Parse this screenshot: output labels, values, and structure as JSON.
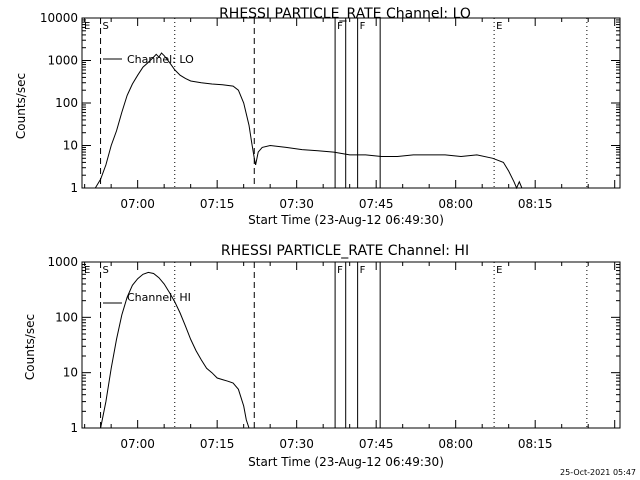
{
  "chart_data": [
    {
      "type": "line",
      "title": "RHESSI PARTICLE_RATE Channel: LO",
      "xlabel": "Start Time (23-Aug-12 06:49:30)",
      "ylabel": "Counts/sec",
      "yscale": "log",
      "ylim": [
        1,
        10000
      ],
      "y_ticks": [
        "1",
        "10",
        "100",
        "1000",
        "10000"
      ],
      "x_ticks": [
        "07:00",
        "07:15",
        "07:30",
        "07:45",
        "08:00",
        "08:15"
      ],
      "x_range": [
        "06:49:30",
        "08:31:00"
      ],
      "grid": false,
      "legend": {
        "position": "top-left",
        "entries": [
          "Channel: LO"
        ]
      },
      "markers": [
        {
          "label": "E",
          "time": "06:49:30",
          "style": "solid"
        },
        {
          "label": "S",
          "time": "06:53:00",
          "style": "dashed"
        },
        {
          "label": "",
          "time": "07:07:00",
          "style": "dotted"
        },
        {
          "label": "",
          "time": "07:22:00",
          "style": "dashed"
        },
        {
          "label": "F",
          "time": "07:37:15",
          "style": "solid"
        },
        {
          "label": "",
          "time": "07:39:15",
          "style": "solid"
        },
        {
          "label": "F",
          "time": "07:41:30",
          "style": "solid"
        },
        {
          "label": "",
          "time": "07:45:45",
          "style": "solid"
        },
        {
          "label": "E",
          "time": "08:07:15",
          "style": "dotted"
        },
        {
          "label": "",
          "time": "08:24:45",
          "style": "dotted"
        }
      ],
      "series": [
        {
          "points": [
            [
              "06:52:00",
              1
            ],
            [
              "06:53:00",
              1.6
            ],
            [
              "06:54:00",
              3.5
            ],
            [
              "06:55:00",
              10
            ],
            [
              "06:56:00",
              22
            ],
            [
              "06:57:00",
              60
            ],
            [
              "06:58:00",
              150
            ],
            [
              "06:59:00",
              280
            ],
            [
              "07:00:00",
              450
            ],
            [
              "07:01:00",
              700
            ],
            [
              "07:02:00",
              900
            ],
            [
              "07:03:00",
              1200
            ],
            [
              "07:03:30",
              1400
            ],
            [
              "07:04:00",
              1200
            ],
            [
              "07:04:30",
              1500
            ],
            [
              "07:05:00",
              1300
            ],
            [
              "07:06:00",
              900
            ],
            [
              "07:07:00",
              600
            ],
            [
              "07:08:00",
              450
            ],
            [
              "07:09:00",
              380
            ],
            [
              "07:10:00",
              330
            ],
            [
              "07:12:00",
              300
            ],
            [
              "07:14:00",
              280
            ],
            [
              "07:16:00",
              270
            ],
            [
              "07:18:00",
              250
            ],
            [
              "07:19:00",
              200
            ],
            [
              "07:20:00",
              100
            ],
            [
              "07:21:00",
              30
            ],
            [
              "07:21:30",
              12
            ],
            [
              "07:22:00",
              5
            ],
            [
              "07:22:15",
              3.5
            ],
            [
              "07:22:45",
              7
            ],
            [
              "07:23:30",
              9
            ],
            [
              "07:25:00",
              10
            ],
            [
              "07:28:00",
              9
            ],
            [
              "07:31:00",
              8
            ],
            [
              "07:34:00",
              7.5
            ],
            [
              "07:37:00",
              7
            ],
            [
              "07:40:00",
              6
            ],
            [
              "07:43:00",
              6
            ],
            [
              "07:46:00",
              5.5
            ],
            [
              "07:49:00",
              5.5
            ],
            [
              "07:52:00",
              6
            ],
            [
              "07:55:00",
              6
            ],
            [
              "07:58:00",
              6
            ],
            [
              "08:01:00",
              5.5
            ],
            [
              "08:04:00",
              6
            ],
            [
              "08:07:00",
              5
            ],
            [
              "08:09:00",
              4
            ],
            [
              "08:10:00",
              2.5
            ],
            [
              "08:11:00",
              1.4
            ],
            [
              "08:11:30",
              1
            ],
            [
              "08:12:00",
              1.4
            ],
            [
              "08:12:30",
              1
            ]
          ]
        }
      ]
    },
    {
      "type": "line",
      "title": "RHESSI PARTICLE_RATE Channel: HI",
      "xlabel": "Start Time (23-Aug-12 06:49:30)",
      "ylabel": "Counts/sec",
      "yscale": "log",
      "ylim": [
        1,
        1000
      ],
      "y_ticks": [
        "1",
        "10",
        "100",
        "1000"
      ],
      "x_ticks": [
        "07:00",
        "07:15",
        "07:30",
        "07:45",
        "08:00",
        "08:15"
      ],
      "x_range": [
        "06:49:30",
        "08:31:00"
      ],
      "grid": false,
      "legend": {
        "position": "top-left",
        "entries": [
          "Channel: HI"
        ]
      },
      "markers": [
        {
          "label": "E",
          "time": "06:49:30",
          "style": "solid"
        },
        {
          "label": "S",
          "time": "06:53:00",
          "style": "dashed"
        },
        {
          "label": "",
          "time": "07:07:00",
          "style": "dotted"
        },
        {
          "label": "",
          "time": "07:22:00",
          "style": "dashed"
        },
        {
          "label": "F",
          "time": "07:37:15",
          "style": "solid"
        },
        {
          "label": "",
          "time": "07:39:15",
          "style": "solid"
        },
        {
          "label": "F",
          "time": "07:41:30",
          "style": "solid"
        },
        {
          "label": "",
          "time": "07:45:45",
          "style": "solid"
        },
        {
          "label": "E",
          "time": "08:07:15",
          "style": "dotted"
        },
        {
          "label": "",
          "time": "08:24:45",
          "style": "dotted"
        }
      ],
      "series": [
        {
          "points": [
            [
              "06:53:00",
              1
            ],
            [
              "06:54:00",
              3
            ],
            [
              "06:55:00",
              12
            ],
            [
              "06:56:00",
              40
            ],
            [
              "06:57:00",
              110
            ],
            [
              "06:58:00",
              230
            ],
            [
              "06:59:00",
              380
            ],
            [
              "07:00:00",
              500
            ],
            [
              "07:01:00",
              600
            ],
            [
              "07:02:00",
              650
            ],
            [
              "07:03:00",
              620
            ],
            [
              "07:04:00",
              520
            ],
            [
              "07:05:00",
              400
            ],
            [
              "07:06:00",
              280
            ],
            [
              "07:07:00",
              190
            ],
            [
              "07:08:00",
              120
            ],
            [
              "07:09:00",
              70
            ],
            [
              "07:10:00",
              40
            ],
            [
              "07:11:00",
              25
            ],
            [
              "07:12:00",
              17
            ],
            [
              "07:13:00",
              12
            ],
            [
              "07:14:00",
              10
            ],
            [
              "07:15:00",
              8
            ],
            [
              "07:16:00",
              7.5
            ],
            [
              "07:17:00",
              7
            ],
            [
              "07:18:00",
              6.5
            ],
            [
              "07:19:00",
              5
            ],
            [
              "07:20:00",
              2.5
            ],
            [
              "07:20:30",
              1.4
            ],
            [
              "07:21:00",
              1
            ]
          ]
        }
      ]
    }
  ],
  "footer": {
    "stamp": "25-Oct-2021 05:47"
  }
}
